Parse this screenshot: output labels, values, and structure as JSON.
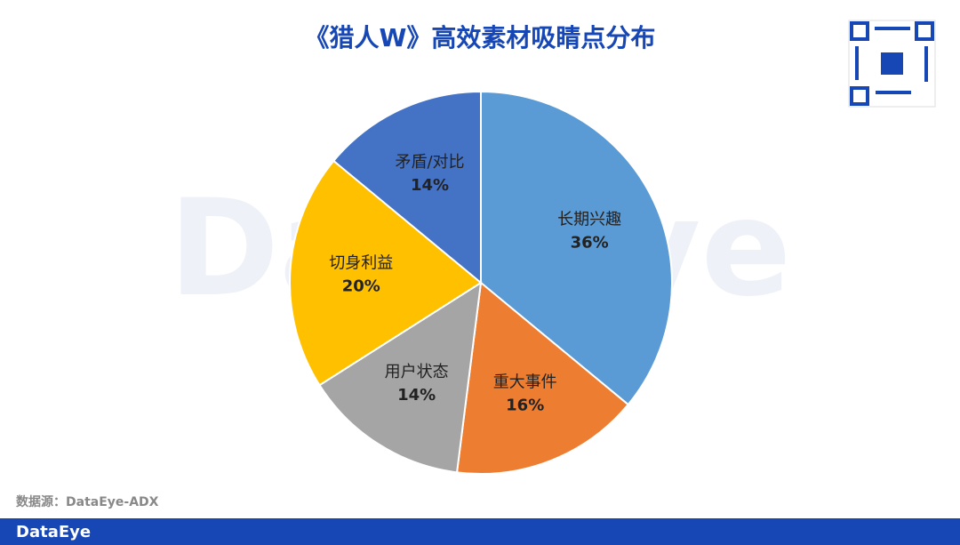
{
  "chart_data": {
    "type": "pie",
    "title": "《猎人W》高效素材吸睛点分布",
    "categories": [
      "长期兴趣",
      "重大事件",
      "用户状态",
      "切身利益",
      "矛盾/对比"
    ],
    "values": [
      36,
      16,
      14,
      20,
      14
    ],
    "value_labels": [
      "36%",
      "16%",
      "14%",
      "20%",
      "14%"
    ],
    "colors": [
      "#5b9bd5",
      "#ed7d31",
      "#a5a5a5",
      "#ffc000",
      "#4472c4"
    ]
  },
  "source": "数据源：DataEye-ADX",
  "watermark": "DataEye",
  "footer": {
    "logo": "DataEye"
  }
}
